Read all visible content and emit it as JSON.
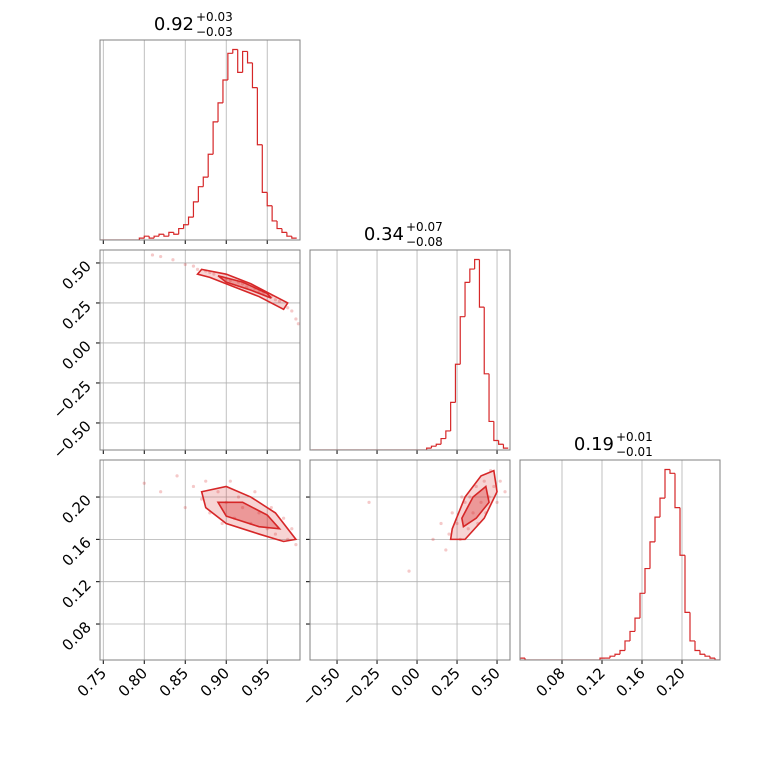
{
  "chart_data": [
    {
      "type": "histogram",
      "title": "0.92",
      "title_plus": "+0.03",
      "title_minus": "−0.03",
      "color": "#d62728",
      "grid": true,
      "bins": [
        0.746,
        0.752,
        0.758,
        0.764,
        0.77,
        0.776,
        0.782,
        0.788,
        0.794,
        0.8,
        0.806,
        0.812,
        0.818,
        0.824,
        0.83,
        0.836,
        0.842,
        0.848,
        0.854,
        0.86,
        0.866,
        0.872,
        0.878,
        0.884,
        0.89,
        0.896,
        0.902,
        0.908,
        0.914,
        0.92,
        0.926,
        0.932,
        0.938,
        0.944,
        0.95,
        0.956,
        0.962,
        0.968,
        0.974,
        0.98,
        0.986
      ],
      "values": [
        0,
        0,
        0,
        0,
        0,
        0,
        0,
        0,
        1,
        2,
        1,
        2,
        3,
        2,
        4,
        3,
        6,
        8,
        12,
        20,
        28,
        33,
        45,
        62,
        72,
        84,
        98,
        100,
        88,
        99,
        93,
        80,
        50,
        25,
        18,
        10,
        6,
        4,
        2,
        1
      ],
      "xlim": [
        0.746,
        0.99
      ],
      "xticks": [
        0.75,
        {
          "value": 0.8,
          "label": "0.80"
        },
        0.85,
        {
          "value": 0.9,
          "label": "0.90"
        },
        0.95
      ],
      "ylim": [
        0,
        105
      ]
    },
    {
      "type": "scatter",
      "color": "#d62728",
      "grid": true,
      "x": [
        0.81,
        0.82,
        0.835,
        0.85,
        0.86,
        0.865,
        0.875,
        0.88,
        0.885,
        0.895,
        0.9,
        0.905,
        0.915,
        0.92,
        0.925,
        0.935,
        0.94,
        0.945,
        0.955,
        0.96,
        0.965,
        0.975,
        0.98,
        0.985,
        0.988
      ],
      "y": [
        0.55,
        0.54,
        0.52,
        0.49,
        0.48,
        0.46,
        0.45,
        0.44,
        0.43,
        0.41,
        0.4,
        0.39,
        0.38,
        0.37,
        0.35,
        0.34,
        0.32,
        0.31,
        0.29,
        0.27,
        0.26,
        0.22,
        0.2,
        0.15,
        0.12
      ],
      "contours": [
        {
          "x": [
            0.87,
            0.9,
            0.93,
            0.96,
            0.975,
            0.97,
            0.94,
            0.91,
            0.88,
            0.865
          ],
          "y": [
            0.46,
            0.43,
            0.37,
            0.29,
            0.25,
            0.21,
            0.29,
            0.35,
            0.41,
            0.43
          ]
        },
        {
          "x": [
            0.89,
            0.92,
            0.95,
            0.955,
            0.93,
            0.9
          ],
          "y": [
            0.42,
            0.38,
            0.31,
            0.28,
            0.33,
            0.38
          ]
        }
      ],
      "xlim": [
        0.746,
        0.99
      ],
      "xticks": [
        0.75,
        {
          "value": 0.8,
          "label": "0.80"
        },
        0.85,
        {
          "value": 0.9,
          "label": "0.90"
        },
        0.95
      ],
      "ylim": [
        -0.669,
        0.581
      ],
      "yticks": [
        {
          "value": -0.5,
          "label": "−0.50"
        },
        {
          "value": -0.25,
          "label": "−0.25"
        },
        {
          "value": 0,
          "label": "0.00"
        },
        0.25,
        {
          "value": 0.5,
          "label": "0.50"
        }
      ]
    },
    {
      "type": "histogram",
      "title": "0.34",
      "title_plus": "+0.07",
      "title_minus": "−0.08",
      "color": "#d62728",
      "grid": true,
      "bins": [
        -0.66,
        -0.63,
        -0.6,
        -0.57,
        -0.54,
        -0.51,
        -0.48,
        -0.45,
        -0.42,
        -0.39,
        -0.36,
        -0.33,
        -0.3,
        -0.27,
        -0.24,
        -0.21,
        -0.18,
        -0.15,
        -0.12,
        -0.09,
        -0.06,
        -0.03,
        0,
        0.03,
        0.06,
        0.09,
        0.12,
        0.15,
        0.18,
        0.21,
        0.24,
        0.27,
        0.3,
        0.33,
        0.36,
        0.39,
        0.42,
        0.45,
        0.48,
        0.51,
        0.54,
        0.57
      ],
      "values": [
        0,
        0,
        0,
        0,
        0,
        0,
        0,
        0,
        0,
        0,
        0,
        0,
        0,
        0,
        0,
        0,
        0,
        0,
        0,
        0,
        0,
        0,
        0,
        0,
        1,
        2,
        3,
        6,
        10,
        25,
        45,
        70,
        88,
        95,
        100,
        75,
        40,
        15,
        5,
        3,
        1
      ],
      "xlim": [
        -0.669,
        0.581
      ],
      "xticks": [
        {
          "value": -0.5,
          "label": "−0.50"
        },
        {
          "value": -0.25,
          "label": "−0.25"
        },
        {
          "value": 0,
          "label": "0.00"
        },
        0.25,
        {
          "value": 0.5,
          "label": "0.50"
        }
      ],
      "ylim": [
        0,
        105
      ]
    },
    {
      "type": "scatter",
      "color": "#d62728",
      "grid": true,
      "x": [
        0.8,
        0.82,
        0.84,
        0.85,
        0.86,
        0.87,
        0.875,
        0.88,
        0.89,
        0.895,
        0.9,
        0.905,
        0.91,
        0.915,
        0.92,
        0.93,
        0.935,
        0.94,
        0.95,
        0.955,
        0.96,
        0.97,
        0.975,
        0.98,
        0.985
      ],
      "y": [
        0.213,
        0.205,
        0.22,
        0.19,
        0.21,
        0.198,
        0.215,
        0.185,
        0.205,
        0.175,
        0.195,
        0.215,
        0.18,
        0.2,
        0.19,
        0.175,
        0.205,
        0.185,
        0.17,
        0.19,
        0.165,
        0.18,
        0.16,
        0.17,
        0.155
      ],
      "contours": [
        {
          "x": [
            0.87,
            0.9,
            0.93,
            0.96,
            0.985,
            0.97,
            0.94,
            0.9,
            0.875
          ],
          "y": [
            0.205,
            0.21,
            0.2,
            0.185,
            0.16,
            0.158,
            0.165,
            0.175,
            0.19
          ]
        },
        {
          "x": [
            0.89,
            0.92,
            0.95,
            0.965,
            0.94,
            0.9
          ],
          "y": [
            0.195,
            0.195,
            0.183,
            0.17,
            0.172,
            0.182
          ]
        }
      ],
      "xlim": [
        0.746,
        0.99
      ],
      "xticks": [
        0.75,
        {
          "value": 0.8,
          "label": "0.80"
        },
        0.85,
        {
          "value": 0.9,
          "label": "0.90"
        },
        0.95
      ],
      "ylim": [
        0.046,
        0.235
      ],
      "yticks": [
        0.08,
        0.12,
        0.16,
        {
          "value": 0.2,
          "label": "0.20"
        }
      ]
    },
    {
      "type": "scatter",
      "color": "#d62728",
      "grid": true,
      "x": [
        -0.3,
        -0.05,
        0.1,
        0.15,
        0.18,
        0.2,
        0.22,
        0.25,
        0.27,
        0.3,
        0.32,
        0.33,
        0.35,
        0.37,
        0.38,
        0.4,
        0.42,
        0.43,
        0.45,
        0.46,
        0.48,
        0.5,
        0.52,
        0.55,
        0.28
      ],
      "y": [
        0.195,
        0.13,
        0.16,
        0.175,
        0.15,
        0.165,
        0.185,
        0.175,
        0.16,
        0.195,
        0.17,
        0.2,
        0.185,
        0.21,
        0.175,
        0.195,
        0.215,
        0.185,
        0.2,
        0.225,
        0.21,
        0.195,
        0.215,
        0.205,
        0.2
      ],
      "contours": [
        {
          "x": [
            0.22,
            0.3,
            0.4,
            0.48,
            0.5,
            0.42,
            0.3,
            0.21
          ],
          "y": [
            0.17,
            0.2,
            0.22,
            0.225,
            0.205,
            0.18,
            0.16,
            0.16
          ]
        },
        {
          "x": [
            0.28,
            0.35,
            0.43,
            0.45,
            0.37,
            0.29
          ],
          "y": [
            0.18,
            0.2,
            0.21,
            0.195,
            0.18,
            0.172
          ]
        }
      ],
      "xlim": [
        -0.669,
        0.581
      ],
      "xticks": [
        {
          "value": -0.5,
          "label": "−0.50"
        },
        {
          "value": -0.25,
          "label": "−0.25"
        },
        {
          "value": 0,
          "label": "0.00"
        },
        0.25,
        {
          "value": 0.5,
          "label": "0.50"
        }
      ],
      "ylim": [
        0.046,
        0.235
      ],
      "yticks": [
        0.08,
        0.12,
        0.16,
        {
          "value": 0.2,
          "label": "0.20"
        }
      ]
    },
    {
      "type": "histogram",
      "title": "0.19",
      "title_plus": "+0.01",
      "title_minus": "−0.01",
      "color": "#d62728",
      "grid": true,
      "bins": [
        0.038,
        0.043,
        0.048,
        0.053,
        0.058,
        0.063,
        0.068,
        0.073,
        0.078,
        0.083,
        0.088,
        0.093,
        0.098,
        0.103,
        0.108,
        0.113,
        0.118,
        0.123,
        0.128,
        0.133,
        0.138,
        0.143,
        0.148,
        0.153,
        0.158,
        0.163,
        0.168,
        0.173,
        0.178,
        0.183,
        0.188,
        0.193,
        0.198,
        0.203,
        0.208,
        0.213,
        0.218,
        0.223,
        0.228,
        0.233,
        0.238
      ],
      "values": [
        1,
        0,
        0,
        0,
        0,
        0,
        0,
        0,
        0,
        0,
        0,
        0,
        0,
        0,
        0,
        0,
        1,
        1,
        2,
        3,
        5,
        10,
        15,
        22,
        35,
        48,
        62,
        75,
        85,
        100,
        98,
        80,
        55,
        25,
        10,
        5,
        3,
        2,
        1,
        0
      ],
      "xlim": [
        0.038,
        0.238
      ],
      "xticks": [
        0.08,
        0.12,
        0.16,
        {
          "value": 0.2,
          "label": "0.20"
        }
      ],
      "ylim": [
        0,
        105
      ]
    }
  ]
}
